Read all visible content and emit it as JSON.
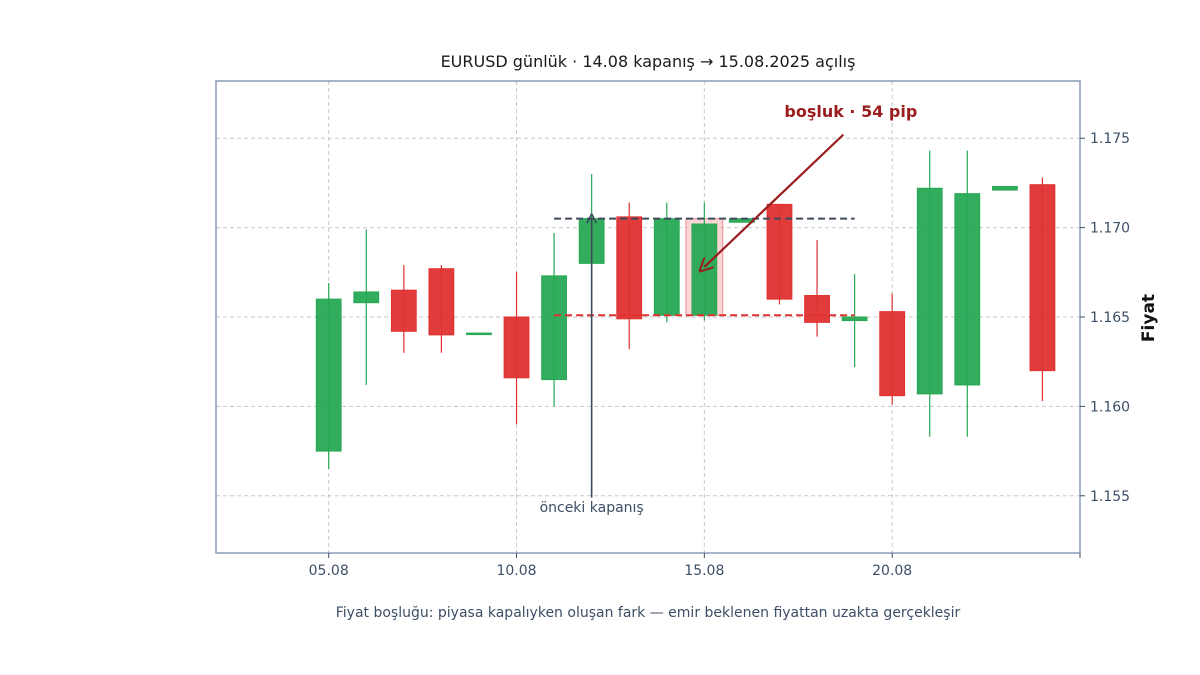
{
  "chart_data": {
    "type": "candlestick",
    "title": "EURUSD günlük · 14.08 kapanış → 15.08.2025 açılış",
    "ylabel": "Fiyat",
    "xlabel": "",
    "caption": "Fiyat boşluğu: piyasa kapalıyken oluşan fark — emir beklenen fiyattan uzakta gerçekleşir",
    "ylim": [
      1.1518,
      1.1782
    ],
    "xlim": [
      2.0,
      25.0
    ],
    "x_ticks": [
      {
        "x": 5,
        "label": "05.08"
      },
      {
        "x": 10,
        "label": "10.08"
      },
      {
        "x": 15,
        "label": "15.08"
      },
      {
        "x": 20,
        "label": "20.08"
      },
      {
        "x": 25,
        "label": ""
      }
    ],
    "y_ticks": [
      {
        "y": 1.155,
        "label": "1.155"
      },
      {
        "y": 1.16,
        "label": "1.160"
      },
      {
        "y": 1.165,
        "label": "1.165"
      },
      {
        "y": 1.17,
        "label": "1.170"
      },
      {
        "y": 1.175,
        "label": "1.175"
      }
    ],
    "grid": true,
    "colors": {
      "up": "#27a854",
      "down": "#e03030",
      "frame": "#8a9bb5",
      "grid": "#c8c8c8",
      "gap_line": "#e03030",
      "prev_line": "#3d4a5c",
      "arrow": "#9b1c1c",
      "gap_box": "#f5b5b5"
    },
    "candles": [
      {
        "x": 5,
        "open": 1.1575,
        "high": 1.1669,
        "low": 1.1565,
        "close": 1.166
      },
      {
        "x": 6,
        "open": 1.1658,
        "high": 1.1699,
        "low": 1.1612,
        "close": 1.1664
      },
      {
        "x": 7,
        "open": 1.1665,
        "high": 1.1679,
        "low": 1.163,
        "close": 1.1642
      },
      {
        "x": 8,
        "open": 1.1677,
        "high": 1.1679,
        "low": 1.163,
        "close": 1.164
      },
      {
        "x": 9,
        "open": 1.1641,
        "high": 1.1641,
        "low": 1.1641,
        "close": 1.1641
      },
      {
        "x": 10,
        "open": 1.165,
        "high": 1.1675,
        "low": 1.159,
        "close": 1.1616
      },
      {
        "x": 11,
        "open": 1.1615,
        "high": 1.1697,
        "low": 1.16,
        "close": 1.1673
      },
      {
        "x": 12,
        "open": 1.168,
        "high": 1.173,
        "low": 1.1668,
        "close": 1.1705
      },
      {
        "x": 13,
        "open": 1.1706,
        "high": 1.1714,
        "low": 1.1632,
        "close": 1.1649
      },
      {
        "x": 14,
        "open": 1.1651,
        "high": 1.1714,
        "low": 1.1647,
        "close": 1.1705
      },
      {
        "x": 15,
        "open": 1.1651,
        "high": 1.1714,
        "low": 1.1648,
        "close": 1.1702
      },
      {
        "x": 16,
        "open": 1.1703,
        "high": 1.1705,
        "low": 1.1703,
        "close": 1.1705
      },
      {
        "x": 17,
        "open": 1.1713,
        "high": 1.1713,
        "low": 1.1657,
        "close": 1.166
      },
      {
        "x": 18,
        "open": 1.1662,
        "high": 1.1693,
        "low": 1.1639,
        "close": 1.1647
      },
      {
        "x": 19,
        "open": 1.1648,
        "high": 1.1674,
        "low": 1.1622,
        "close": 1.165
      },
      {
        "x": 20,
        "open": 1.1653,
        "high": 1.1663,
        "low": 1.1601,
        "close": 1.1606
      },
      {
        "x": 21,
        "open": 1.1607,
        "high": 1.1743,
        "low": 1.1583,
        "close": 1.1722
      },
      {
        "x": 22,
        "open": 1.1612,
        "high": 1.1743,
        "low": 1.1583,
        "close": 1.1719
      },
      {
        "x": 23,
        "open": 1.1721,
        "high": 1.1723,
        "low": 1.1721,
        "close": 1.1723
      },
      {
        "x": 24,
        "open": 1.1724,
        "high": 1.1728,
        "low": 1.1603,
        "close": 1.162
      }
    ],
    "reference_lines": [
      {
        "name": "prev_close",
        "y": 1.1705,
        "x_from": 11,
        "x_to": 19,
        "style": "dashed",
        "color": "#3d4a5c"
      },
      {
        "name": "open",
        "y": 1.1651,
        "x_from": 11,
        "x_to": 19,
        "style": "dashed",
        "color": "#e03030"
      }
    ],
    "gap_highlight": {
      "x": 15,
      "y_from": 1.1651,
      "y_to": 1.1705
    },
    "annotations": {
      "gap": {
        "text": "boşluk · 54 pip",
        "text_x": 18.9,
        "text_y": 1.1762,
        "arrow_from": [
          18.7,
          1.1752
        ],
        "arrow_to": [
          15.0,
          1.1678
        ]
      },
      "prev": {
        "text": "önceki kapanış",
        "text_x": 12.0,
        "text_y": 1.1541,
        "arrow_from": [
          12.0,
          1.1549
        ],
        "arrow_to": [
          12.0,
          1.1705
        ]
      }
    }
  }
}
